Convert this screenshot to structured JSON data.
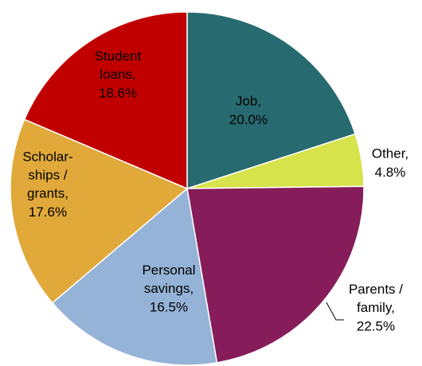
{
  "chart_data": {
    "type": "pie",
    "categories": [
      "Job,",
      "Other,",
      "Parents /\nfamily,",
      "Personal\nsavings,",
      "Scholar-\nships /\ngrants,",
      "Student\nloans,"
    ],
    "values": [
      20.0,
      4.8,
      22.5,
      16.5,
      17.6,
      18.6
    ],
    "value_labels": [
      "20.0%",
      "4.8%",
      "22.5%",
      "16.5%",
      "17.6%",
      "18.6%"
    ],
    "colors": [
      "#276a6f",
      "#d7e34a",
      "#861d5a",
      "#95b3d7",
      "#e0a93a",
      "#c00000"
    ]
  }
}
